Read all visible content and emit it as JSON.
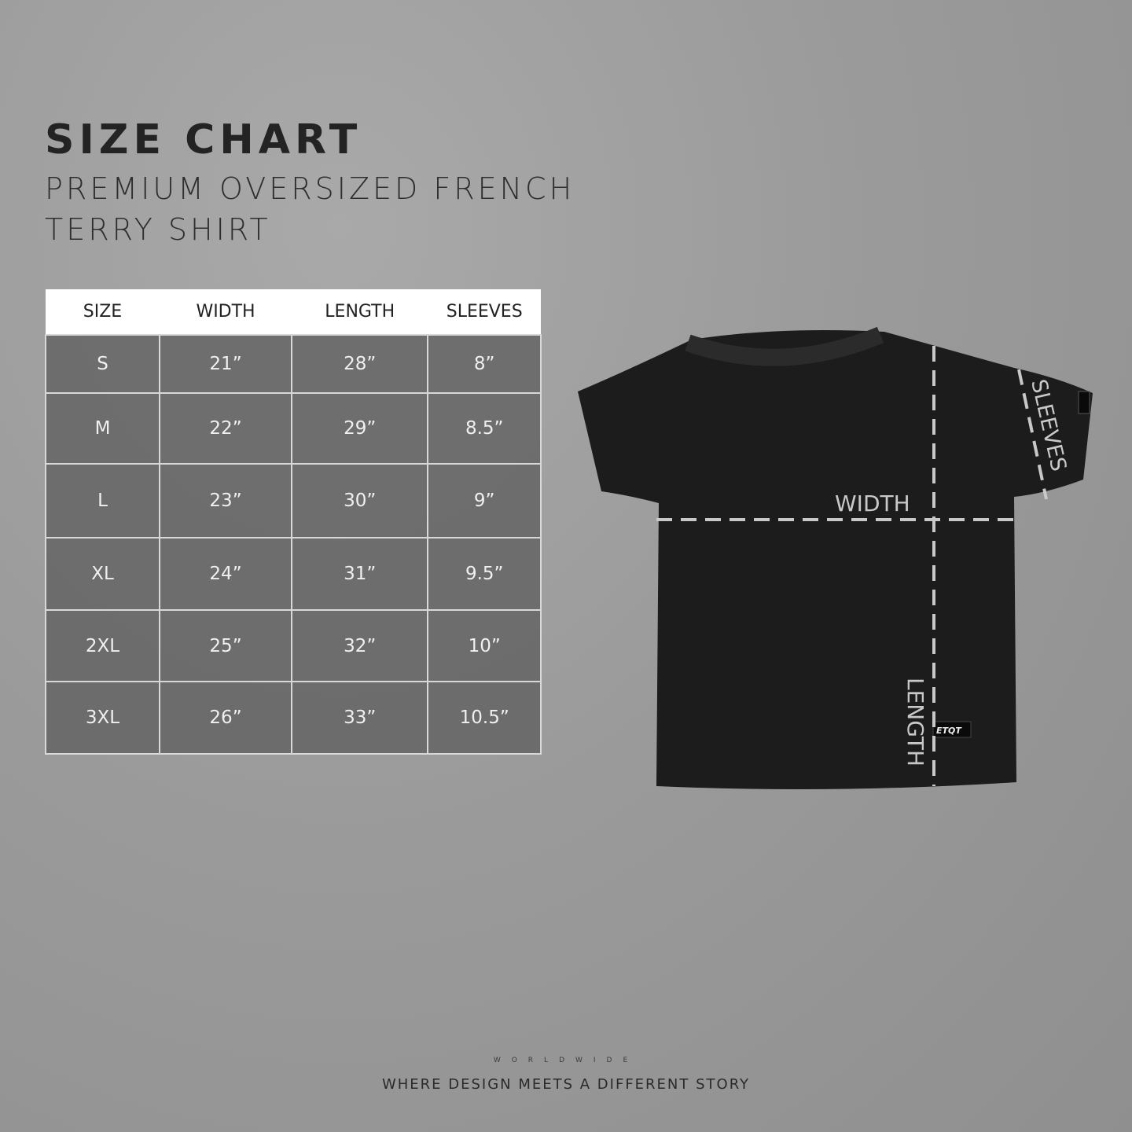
{
  "header": {
    "title": "SIZE CHART",
    "subtitle": "PREMIUM OVERSIZED FRENCH TERRY SHIRT"
  },
  "table": {
    "columns": [
      "SIZE",
      "WIDTH",
      "LENGTH",
      "SLEEVES"
    ],
    "rows": [
      [
        "S",
        "21”",
        "28”",
        "8”"
      ],
      [
        "M",
        "22”",
        "29”",
        "8.5”"
      ],
      [
        "L",
        "23”",
        "30”",
        "9”"
      ],
      [
        "XL",
        "24”",
        "31”",
        "9.5”"
      ],
      [
        "2XL",
        "25”",
        "32”",
        "10”"
      ],
      [
        "3XL",
        "26”",
        "33”",
        "10.5”"
      ]
    ]
  },
  "diagram": {
    "width_label": "WIDTH",
    "length_label": "LENGTH",
    "sleeves_label": "SLEEVES",
    "shirt_color": "#1c1c1c",
    "guide_color": "#c8c8c8"
  },
  "brand": {
    "logo_text": "ETQT",
    "registered": "®",
    "worldwide": "WORLDWIDE",
    "slogan": "WHERE DESIGN MEETS A DIFFERENT STORY",
    "globe_icon": "globe-icon"
  }
}
